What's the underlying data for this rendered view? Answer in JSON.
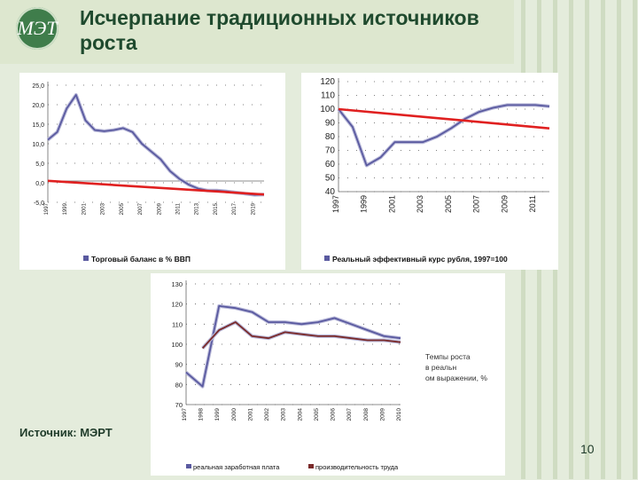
{
  "header": {
    "logo_text": "МЭТ",
    "title": "Исчерпание традиционных источников роста"
  },
  "footer": {
    "source": "Источник: МЭРТ",
    "page_number": "10"
  },
  "colors": {
    "series_blue": "#5a5aa0",
    "series_dark_red": "#7a2a2a",
    "trend_red": "#e02020",
    "accent_green": "#3f7d4b"
  },
  "chart_data": [
    {
      "type": "line",
      "legend": "Торговый баланс в % ВВП",
      "ylim": [
        -5,
        25
      ],
      "yticks": [
        "25,0",
        "20,0",
        "15,0",
        "10,0",
        "5,0",
        "0,0",
        "-5,0"
      ],
      "xticks": [
        "1997",
        "1999",
        "2001",
        "2003",
        "2005",
        "2007",
        "2009",
        "2011",
        "2013",
        "2015",
        "2017",
        "2019"
      ],
      "x": [
        1997,
        1998,
        1999,
        2000,
        2001,
        2002,
        2003,
        2004,
        2005,
        2006,
        2007,
        2008,
        2009,
        2010,
        2011,
        2012,
        2013,
        2014,
        2015,
        2016,
        2017,
        2018,
        2019,
        2020
      ],
      "values": [
        11,
        13,
        19,
        22.5,
        16,
        13.5,
        13.2,
        13.5,
        14,
        13,
        10,
        8,
        6,
        3,
        1,
        -0.5,
        -1.5,
        -2,
        -2,
        -2.2,
        -2.5,
        -2.8,
        -3.1,
        -3
      ],
      "trend": {
        "from": [
          1997,
          0.5
        ],
        "to": [
          2020,
          -3
        ]
      }
    },
    {
      "type": "line",
      "legend": "Реальный эффективный курс рубля, 1997=100",
      "ylim": [
        40,
        120
      ],
      "yticks": [
        "120",
        "110",
        "100",
        "90",
        "80",
        "70",
        "60",
        "50",
        "40"
      ],
      "xticks": [
        "1997",
        "1999",
        "2001",
        "2003",
        "2005",
        "2007",
        "2009",
        "2011"
      ],
      "x": [
        1997,
        1998,
        1999,
        2000,
        2001,
        2002,
        2003,
        2004,
        2005,
        2006,
        2007,
        2008,
        2009,
        2010,
        2011,
        2012
      ],
      "values": [
        100,
        87,
        59,
        65,
        76,
        76,
        76,
        80,
        86,
        93,
        98,
        101,
        103,
        103,
        103,
        102
      ],
      "trend": {
        "from": [
          1997,
          100
        ],
        "to": [
          2012,
          86
        ]
      }
    },
    {
      "type": "line",
      "annotation": "Темпы роста в реальном выражении, %",
      "ylim": [
        70,
        130
      ],
      "yticks": [
        "130",
        "120",
        "110",
        "100",
        "90",
        "80",
        "70"
      ],
      "xticks": [
        "1997",
        "1998",
        "1999",
        "2000",
        "2001",
        "2002",
        "2003",
        "2004",
        "2005",
        "2006",
        "2007",
        "2008",
        "2009",
        "2010"
      ],
      "x": [
        1997,
        1998,
        1999,
        2000,
        2001,
        2002,
        2003,
        2004,
        2005,
        2006,
        2007,
        2008,
        2009,
        2010
      ],
      "series": [
        {
          "name": "реальная заработная плата",
          "values": [
            86,
            79,
            119,
            118,
            116,
            111,
            111,
            110,
            111,
            113,
            110,
            107,
            104,
            103
          ]
        },
        {
          "name": "производительность труда",
          "values": [
            null,
            98,
            107,
            111,
            104,
            103,
            106,
            105,
            104,
            104,
            103,
            102,
            102,
            101
          ]
        }
      ]
    }
  ]
}
